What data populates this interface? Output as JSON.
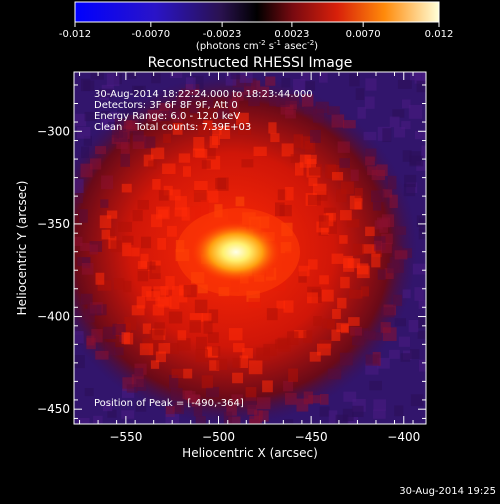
{
  "colorbar": {
    "tick_labels": [
      "-0.012",
      "-0.0070",
      "-0.0023",
      "0.0023",
      "0.0070",
      "0.012"
    ],
    "tick_values": [
      -0.012,
      -0.007,
      -0.0023,
      0.0023,
      0.007,
      0.012
    ],
    "range": [
      -0.012,
      0.012
    ],
    "unit_label": "(photons cm",
    "unit_exp1": "-2",
    "unit_mid": " s",
    "unit_exp2": "-1",
    "unit_tail": " asec",
    "unit_exp3": "-2",
    "unit_close": ")"
  },
  "chart_data": {
    "type": "heatmap",
    "title": "Reconstructed RHESSI Image",
    "xlabel": "Heliocentric X (arcsec)",
    "ylabel": "Heliocentric Y (arcsec)",
    "xlim": [
      -578,
      -388
    ],
    "ylim": [
      -458,
      -268
    ],
    "x_ticks": [
      -550,
      -500,
      -450,
      -400
    ],
    "x_tick_labels": [
      "−550",
      "−500",
      "−450",
      "−400"
    ],
    "y_ticks": [
      -300,
      -350,
      -400,
      -450
    ],
    "y_tick_labels": [
      "−300",
      "−350",
      "−400",
      "−450"
    ],
    "annotations": [
      "30-Aug-2014 18:22:24.000 to 18:23:44.000",
      "Detectors: 3F 6F 8F 9F, Att 0",
      "Energy Range: 6.0 - 12.0 keV",
      "Clean    Total counts: 7.39E+03"
    ],
    "peak_label": "Position of Peak = [-490,-364]",
    "peak": [
      -490,
      -364
    ]
  },
  "footer_timestamp": "30-Aug-2014 19:25"
}
